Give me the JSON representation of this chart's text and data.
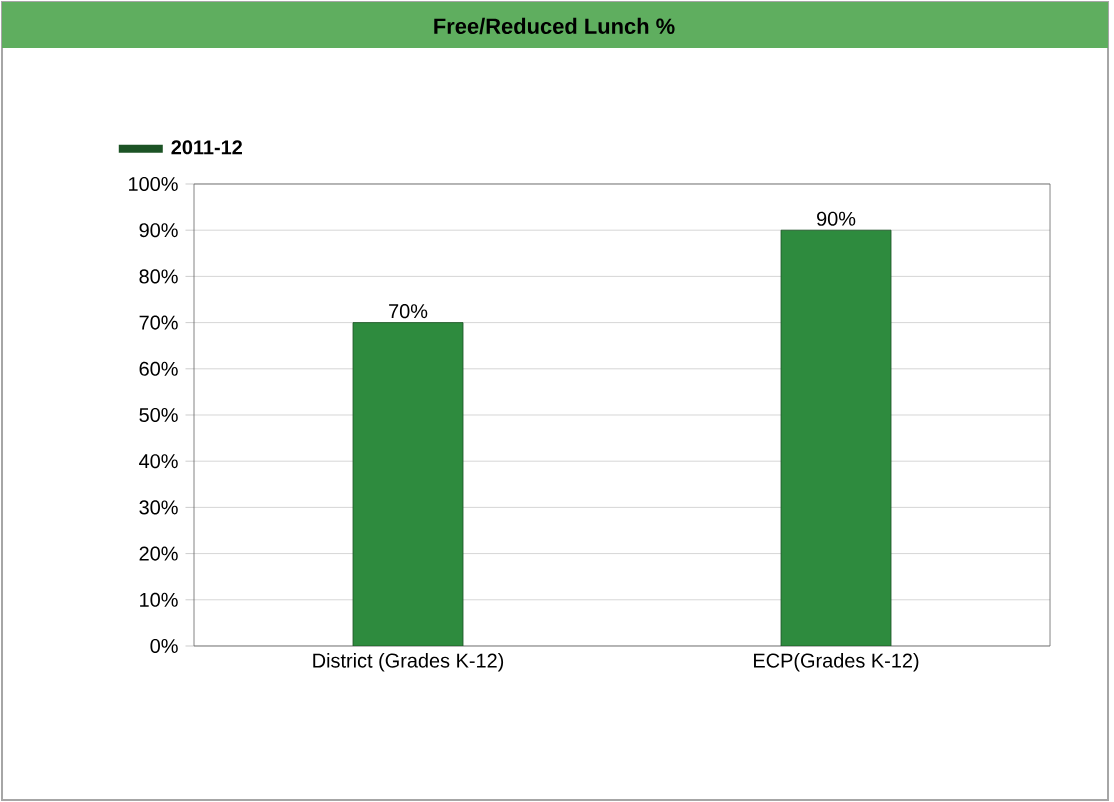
{
  "chart_data": {
    "type": "bar",
    "title": "Free/Reduced Lunch %",
    "categories": [
      "District (Grades K-12)",
      "ECP(Grades K-12)"
    ],
    "series": [
      {
        "name": "2011-12",
        "color": "#2e8b3e",
        "values": [
          70,
          90
        ],
        "value_labels": [
          "70%",
          "90%"
        ]
      }
    ],
    "ylim": [
      0,
      100
    ],
    "yticks": [
      {
        "value": 0,
        "label": "0%"
      },
      {
        "value": 10,
        "label": "10%"
      },
      {
        "value": 20,
        "label": "20%"
      },
      {
        "value": 30,
        "label": "30%"
      },
      {
        "value": 40,
        "label": "40%"
      },
      {
        "value": 50,
        "label": "50%"
      },
      {
        "value": 60,
        "label": "60%"
      },
      {
        "value": 70,
        "label": "70%"
      },
      {
        "value": 80,
        "label": "80%"
      },
      {
        "value": 90,
        "label": "90%"
      },
      {
        "value": 100,
        "label": "100%"
      }
    ],
    "grid": "y",
    "legend": "top left"
  }
}
